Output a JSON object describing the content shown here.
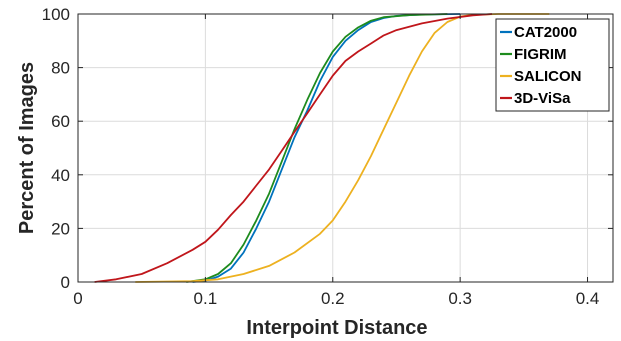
{
  "chart_data": {
    "type": "line",
    "title": "",
    "xlabel": "Interpoint Distance",
    "ylabel": "Percent of Images",
    "xlim": [
      0,
      0.42
    ],
    "ylim": [
      0,
      100
    ],
    "xticks": [
      0,
      0.1,
      0.2,
      0.3,
      0.4
    ],
    "xtick_labels": [
      "0",
      "0.1",
      "0.2",
      "0.3",
      "0.4"
    ],
    "yticks": [
      0,
      20,
      40,
      60,
      80,
      100
    ],
    "ytick_labels": [
      "0",
      "20",
      "40",
      "60",
      "80",
      "100"
    ],
    "grid": true,
    "legend_position": "top-right",
    "series": [
      {
        "name": "CAT2000",
        "color": "#0072BD",
        "points": [
          [
            0.09,
            0
          ],
          [
            0.1,
            0.5
          ],
          [
            0.11,
            2
          ],
          [
            0.12,
            5
          ],
          [
            0.13,
            11
          ],
          [
            0.14,
            20
          ],
          [
            0.15,
            30
          ],
          [
            0.16,
            42
          ],
          [
            0.17,
            54
          ],
          [
            0.18,
            64
          ],
          [
            0.19,
            75
          ],
          [
            0.2,
            84
          ],
          [
            0.21,
            90
          ],
          [
            0.22,
            94
          ],
          [
            0.23,
            97
          ],
          [
            0.24,
            98.5
          ],
          [
            0.25,
            99.3
          ],
          [
            0.27,
            99.8
          ],
          [
            0.3,
            100
          ]
        ]
      },
      {
        "name": "FIGRIM",
        "color": "#1E8B1E",
        "points": [
          [
            0.085,
            0
          ],
          [
            0.1,
            1
          ],
          [
            0.11,
            3
          ],
          [
            0.12,
            7
          ],
          [
            0.13,
            14
          ],
          [
            0.14,
            23
          ],
          [
            0.15,
            33
          ],
          [
            0.16,
            45
          ],
          [
            0.17,
            57
          ],
          [
            0.18,
            68
          ],
          [
            0.19,
            78
          ],
          [
            0.2,
            86
          ],
          [
            0.21,
            91.5
          ],
          [
            0.22,
            95
          ],
          [
            0.23,
            97.5
          ],
          [
            0.24,
            98.8
          ],
          [
            0.26,
            99.6
          ],
          [
            0.29,
            100
          ]
        ]
      },
      {
        "name": "SALICON",
        "color": "#EDB120",
        "points": [
          [
            0.045,
            0
          ],
          [
            0.09,
            0.3
          ],
          [
            0.11,
            1
          ],
          [
            0.13,
            3
          ],
          [
            0.15,
            6
          ],
          [
            0.17,
            11
          ],
          [
            0.19,
            18
          ],
          [
            0.2,
            23
          ],
          [
            0.21,
            30
          ],
          [
            0.22,
            38
          ],
          [
            0.23,
            47
          ],
          [
            0.24,
            57
          ],
          [
            0.25,
            67
          ],
          [
            0.26,
            77
          ],
          [
            0.27,
            86
          ],
          [
            0.28,
            93
          ],
          [
            0.29,
            97
          ],
          [
            0.3,
            99
          ],
          [
            0.31,
            99.7
          ],
          [
            0.33,
            100
          ],
          [
            0.37,
            100
          ]
        ]
      },
      {
        "name": "3D-ViSa",
        "color": "#C0161B",
        "points": [
          [
            0.013,
            0
          ],
          [
            0.03,
            1
          ],
          [
            0.05,
            3
          ],
          [
            0.07,
            7
          ],
          [
            0.09,
            12
          ],
          [
            0.1,
            15
          ],
          [
            0.11,
            19.5
          ],
          [
            0.12,
            25
          ],
          [
            0.13,
            30
          ],
          [
            0.14,
            36
          ],
          [
            0.15,
            42
          ],
          [
            0.16,
            49
          ],
          [
            0.17,
            56
          ],
          [
            0.18,
            63
          ],
          [
            0.19,
            70
          ],
          [
            0.2,
            77
          ],
          [
            0.21,
            82.5
          ],
          [
            0.22,
            86
          ],
          [
            0.23,
            89
          ],
          [
            0.24,
            92
          ],
          [
            0.25,
            94
          ],
          [
            0.27,
            96.5
          ],
          [
            0.29,
            98.3
          ],
          [
            0.31,
            99.5
          ],
          [
            0.325,
            100
          ]
        ]
      }
    ]
  }
}
